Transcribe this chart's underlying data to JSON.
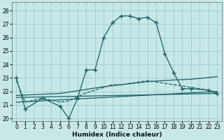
{
  "xlabel": "Humidex (Indice chaleur)",
  "bg_color": "#c8e8e8",
  "grid_color": "#a0c8c8",
  "line_color": "#1a6060",
  "xlim": [
    -0.5,
    23.5
  ],
  "ylim": [
    19.8,
    28.6
  ],
  "yticks": [
    20,
    21,
    22,
    23,
    24,
    25,
    26,
    27,
    28
  ],
  "xticks": [
    0,
    1,
    2,
    3,
    4,
    5,
    6,
    7,
    8,
    9,
    10,
    11,
    12,
    13,
    14,
    15,
    16,
    17,
    18,
    19,
    20,
    21,
    22,
    23
  ],
  "curve1_x": [
    0,
    1,
    3,
    5,
    6,
    7,
    8,
    9,
    10,
    11,
    12,
    13,
    14,
    15,
    16,
    17,
    18,
    19,
    20,
    22,
    23
  ],
  "curve1_y": [
    23.0,
    20.7,
    21.5,
    20.9,
    20.0,
    21.5,
    23.6,
    23.6,
    26.0,
    27.1,
    27.6,
    27.6,
    27.4,
    27.5,
    27.1,
    24.8,
    23.4,
    22.2,
    22.2,
    22.1,
    21.8
  ],
  "curve2_x": [
    0,
    1,
    3,
    5,
    6,
    7,
    8,
    9,
    10,
    11,
    12,
    13,
    14,
    15,
    16,
    17,
    18,
    19,
    20,
    22,
    23
  ],
  "curve2_y": [
    22.8,
    21.2,
    21.5,
    21.2,
    21.3,
    21.6,
    21.9,
    22.1,
    22.3,
    22.5,
    22.5,
    22.6,
    22.7,
    22.8,
    22.7,
    22.6,
    22.5,
    22.4,
    22.3,
    22.1,
    21.9
  ],
  "line1_x": [
    0,
    23
  ],
  "line1_y": [
    21.2,
    22.0
  ],
  "line2_x": [
    0,
    23
  ],
  "line2_y": [
    21.55,
    21.85
  ],
  "line3_x": [
    0,
    5,
    10,
    15,
    18,
    20,
    23
  ],
  "line3_y": [
    21.7,
    21.85,
    22.35,
    22.72,
    22.85,
    22.9,
    23.1
  ]
}
